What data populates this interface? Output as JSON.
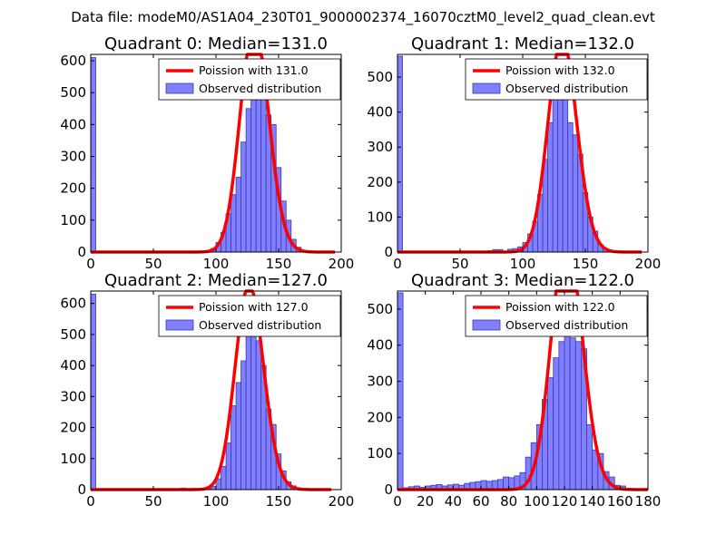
{
  "figure": {
    "suptitle": "Data file: modeM0/AS1A04_230T01_9000002374_16070cztM0_level2_quad_clean.evt"
  },
  "colors": {
    "hist_fill": "#7f7fff",
    "hist_edge": "#3a3aa8",
    "poisson_line": "#ff0000",
    "legend_border": "#000000"
  },
  "chart_data": [
    {
      "type": "bar",
      "title": "Quadrant 0: Median=131.0",
      "xlim": [
        0,
        200
      ],
      "ylim": [
        0,
        620
      ],
      "xticks": [
        0,
        50,
        100,
        150,
        200
      ],
      "yticks": [
        0,
        100,
        200,
        300,
        400,
        500,
        600
      ],
      "bin_width": 4,
      "hist": {
        "name": "Observed distribution",
        "bins": [
          [
            0,
            610
          ],
          [
            72,
            3
          ],
          [
            84,
            2
          ],
          [
            92,
            5
          ],
          [
            96,
            11
          ],
          [
            100,
            30
          ],
          [
            104,
            62
          ],
          [
            108,
            120
          ],
          [
            112,
            180
          ],
          [
            116,
            235
          ],
          [
            120,
            345
          ],
          [
            124,
            450
          ],
          [
            128,
            560
          ],
          [
            132,
            575
          ],
          [
            136,
            490
          ],
          [
            140,
            430
          ],
          [
            144,
            400
          ],
          [
            148,
            265
          ],
          [
            152,
            160
          ],
          [
            156,
            100
          ],
          [
            160,
            40
          ],
          [
            164,
            15
          ],
          [
            168,
            3
          ]
        ]
      },
      "poisson": {
        "name": "Poission with 131.0",
        "mean": 131.0,
        "x_range": [
          0,
          195
        ]
      }
    },
    {
      "type": "bar",
      "title": "Quadrant 1: Median=132.0",
      "xlim": [
        0,
        200
      ],
      "ylim": [
        0,
        565
      ],
      "xticks": [
        0,
        50,
        100,
        150,
        200
      ],
      "yticks": [
        0,
        100,
        200,
        300,
        400,
        500
      ],
      "bin_width": 4,
      "hist": {
        "name": "Observed distribution",
        "bins": [
          [
            0,
            560
          ],
          [
            72,
            4
          ],
          [
            76,
            7
          ],
          [
            80,
            7
          ],
          [
            84,
            2
          ],
          [
            88,
            8
          ],
          [
            92,
            10
          ],
          [
            96,
            15
          ],
          [
            100,
            27
          ],
          [
            104,
            52
          ],
          [
            108,
            88
          ],
          [
            112,
            165
          ],
          [
            116,
            265
          ],
          [
            120,
            370
          ],
          [
            124,
            480
          ],
          [
            128,
            530
          ],
          [
            132,
            460
          ],
          [
            136,
            370
          ],
          [
            140,
            335
          ],
          [
            144,
            280
          ],
          [
            148,
            170
          ],
          [
            152,
            100
          ],
          [
            156,
            60
          ],
          [
            160,
            22
          ],
          [
            164,
            10
          ],
          [
            168,
            5
          ]
        ]
      },
      "poisson": {
        "name": "Poission with 132.0",
        "mean": 132.0,
        "x_range": [
          0,
          195
        ]
      }
    },
    {
      "type": "bar",
      "title": "Quadrant 2: Median=127.0",
      "xlim": [
        0,
        200
      ],
      "ylim": [
        0,
        640
      ],
      "xticks": [
        0,
        50,
        100,
        150,
        200
      ],
      "yticks": [
        0,
        100,
        200,
        300,
        400,
        500,
        600
      ],
      "bin_width": 4,
      "hist": {
        "name": "Observed distribution",
        "bins": [
          [
            0,
            630
          ],
          [
            72,
            5
          ],
          [
            76,
            3
          ],
          [
            80,
            4
          ],
          [
            88,
            3
          ],
          [
            92,
            5
          ],
          [
            96,
            10
          ],
          [
            100,
            35
          ],
          [
            104,
            75
          ],
          [
            108,
            150
          ],
          [
            112,
            270
          ],
          [
            116,
            345
          ],
          [
            120,
            415
          ],
          [
            124,
            560
          ],
          [
            128,
            590
          ],
          [
            132,
            480
          ],
          [
            136,
            400
          ],
          [
            140,
            260
          ],
          [
            144,
            210
          ],
          [
            148,
            115
          ],
          [
            152,
            60
          ],
          [
            156,
            25
          ],
          [
            160,
            12
          ],
          [
            164,
            5
          ]
        ]
      },
      "poisson": {
        "name": "Poission with 127.0",
        "mean": 127.0,
        "x_range": [
          0,
          192
        ]
      }
    },
    {
      "type": "bar",
      "title": "Quadrant 3: Median=122.0",
      "xlim": [
        0,
        180
      ],
      "ylim": [
        0,
        550
      ],
      "xticks": [
        0,
        20,
        40,
        60,
        80,
        100,
        120,
        140,
        160,
        180
      ],
      "yticks": [
        0,
        100,
        200,
        300,
        400,
        500
      ],
      "bin_width": 4,
      "hist": {
        "name": "Observed distribution",
        "bins": [
          [
            0,
            545
          ],
          [
            4,
            5
          ],
          [
            8,
            8
          ],
          [
            12,
            10
          ],
          [
            16,
            6
          ],
          [
            20,
            10
          ],
          [
            24,
            12
          ],
          [
            28,
            14
          ],
          [
            32,
            10
          ],
          [
            36,
            13
          ],
          [
            40,
            15
          ],
          [
            44,
            12
          ],
          [
            48,
            17
          ],
          [
            52,
            20
          ],
          [
            56,
            22
          ],
          [
            60,
            25
          ],
          [
            64,
            23
          ],
          [
            68,
            25
          ],
          [
            72,
            28
          ],
          [
            76,
            35
          ],
          [
            80,
            33
          ],
          [
            84,
            38
          ],
          [
            88,
            47
          ],
          [
            92,
            90
          ],
          [
            96,
            130
          ],
          [
            100,
            180
          ],
          [
            104,
            250
          ],
          [
            108,
            310
          ],
          [
            112,
            365
          ],
          [
            116,
            410
          ],
          [
            120,
            460
          ],
          [
            124,
            420
          ],
          [
            128,
            410
          ],
          [
            132,
            390
          ],
          [
            136,
            180
          ],
          [
            140,
            110
          ],
          [
            144,
            100
          ],
          [
            148,
            50
          ],
          [
            152,
            35
          ],
          [
            156,
            12
          ],
          [
            160,
            10
          ]
        ]
      },
      "poisson": {
        "name": "Poission with 122.0",
        "mean": 122.0,
        "x_range": [
          0,
          180
        ]
      }
    }
  ]
}
